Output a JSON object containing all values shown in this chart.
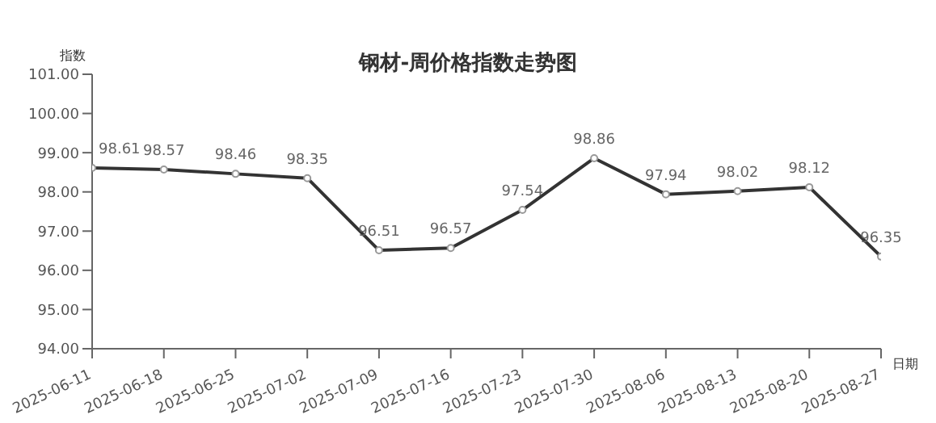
{
  "chart_data": {
    "type": "line",
    "title": "钢材-周价格指数走势图",
    "xlabel": "日期",
    "ylabel": "指数",
    "categories": [
      "2025-06-11",
      "2025-06-18",
      "2025-06-25",
      "2025-07-02",
      "2025-07-09",
      "2025-07-16",
      "2025-07-23",
      "2025-07-30",
      "2025-08-06",
      "2025-08-13",
      "2025-08-20",
      "2025-08-27"
    ],
    "series": [
      {
        "color": "#333333",
        "values": [
          98.61,
          98.57,
          98.46,
          98.35,
          96.51,
          96.57,
          97.54,
          98.86,
          97.94,
          98.02,
          98.12,
          96.35
        ]
      }
    ],
    "ylim": [
      94,
      101
    ],
    "yticks": [
      {
        "value": 94,
        "label": "94.00"
      },
      {
        "value": 95,
        "label": "95.00"
      },
      {
        "value": 96,
        "label": "96.00"
      },
      {
        "value": 97,
        "label": "97.00"
      },
      {
        "value": 98,
        "label": "98.00"
      },
      {
        "value": 99,
        "label": "99.00"
      },
      {
        "value": 100,
        "label": "100.00"
      },
      {
        "value": 101,
        "label": "101.00"
      }
    ],
    "grid": false,
    "legend": false,
    "marker": "circle",
    "line_style": "solid",
    "data_labels": true
  }
}
